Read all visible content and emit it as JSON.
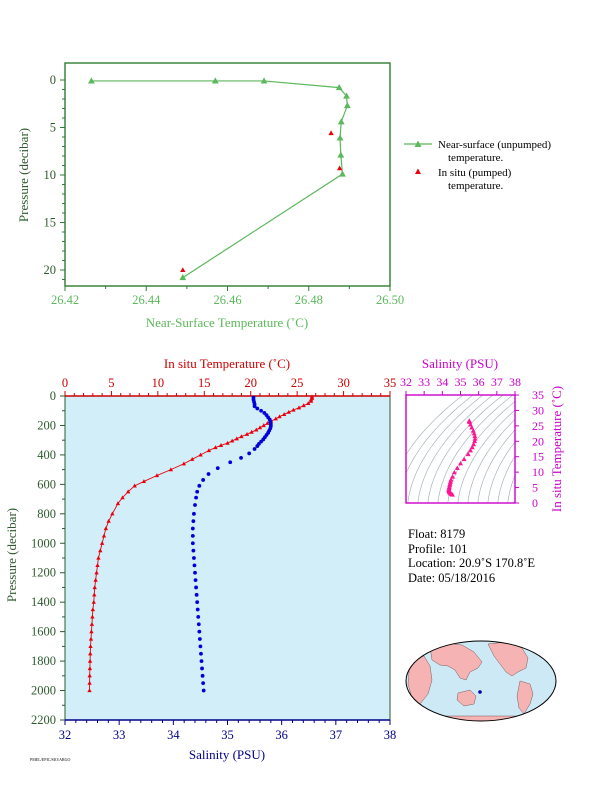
{
  "chart_data": [
    {
      "type": "line",
      "xlabel": "Near-Surface Temperature (˚C)",
      "ylabel": "Pressure (decibar)",
      "xlim": [
        26.42,
        26.5
      ],
      "ylim": [
        0,
        22
      ],
      "y_reversed": true,
      "x_ticks": [
        "26.42",
        "26.44",
        "26.46",
        "26.48",
        "26.50"
      ],
      "y_ticks": [
        "0",
        "5",
        "10",
        "15",
        "20"
      ],
      "colors": {
        "unpumped": "#5cb85c",
        "pumped": "#e8000b",
        "axis": "#5cb85c",
        "frame": "#2e7d32"
      },
      "series": [
        {
          "name": "Near-surface (unpumped) temperature.",
          "x": [
            26.4265,
            26.457,
            26.469,
            26.4875,
            26.4893,
            26.4895,
            26.488,
            26.4877,
            26.4879,
            26.4883,
            26.449
          ],
          "y": [
            0.1,
            0.1,
            0.1,
            0.8,
            1.7,
            2.7,
            4.4,
            6.1,
            7.9,
            9.9,
            20.8
          ]
        },
        {
          "name": "In situ (pumped) temperature.",
          "x": [
            26.4855,
            26.4876,
            26.449
          ],
          "y": [
            5.6,
            9.3,
            20.0
          ]
        }
      ],
      "legend": {
        "line1": "Near-surface (unpumped)",
        "line1b": "temperature.",
        "line2": "In situ (pumped)",
        "line2b": "temperature.",
        "position": "right"
      }
    },
    {
      "type": "scatter",
      "title_temp": "In situ Temperature (˚C)",
      "xlabel": "Salinity (PSU)",
      "ylabel": "Pressure (decibar)",
      "temp_ticks": [
        "0",
        "5",
        "10",
        "15",
        "20",
        "25",
        "30",
        "35"
      ],
      "sal_ticks": [
        "32",
        "33",
        "34",
        "35",
        "36",
        "37",
        "38"
      ],
      "y_ticks": [
        "0",
        "200",
        "400",
        "600",
        "800",
        "1000",
        "1200",
        "1400",
        "1600",
        "1800",
        "2000",
        "2200"
      ],
      "temp_lim": [
        0,
        35
      ],
      "sal_lim": [
        32,
        38
      ],
      "ylim": [
        0,
        2200
      ],
      "y_reversed": true,
      "colors": {
        "temperature": "#e8000b",
        "salinity": "#0000dd",
        "background": "#d2eef8",
        "sal_axis": "#00008b",
        "temp_axis": "#cc0000",
        "y_axis": "#2e5a2e"
      },
      "temperature": {
        "p": [
          5,
          15,
          25,
          35,
          50,
          65,
          80,
          95,
          110,
          125,
          140,
          155,
          170,
          185,
          200,
          215,
          230,
          245,
          260,
          275,
          290,
          305,
          320,
          335,
          350,
          370,
          400,
          430,
          460,
          500,
          540,
          580,
          610,
          650,
          690,
          730,
          800,
          850,
          900,
          950,
          1000,
          1050,
          1100,
          1150,
          1200,
          1250,
          1300,
          1350,
          1400,
          1450,
          1500,
          1550,
          1600,
          1650,
          1700,
          1750,
          1800,
          1850,
          1900,
          1950,
          2000
        ],
        "t": [
          26.6,
          26.6,
          26.5,
          26.5,
          26.2,
          25.7,
          25.2,
          24.6,
          24.1,
          23.6,
          23.1,
          22.7,
          22.2,
          21.8,
          21.4,
          21.0,
          20.6,
          20.1,
          19.6,
          19.0,
          18.5,
          18.0,
          17.5,
          16.8,
          16.2,
          15.5,
          14.6,
          13.7,
          12.8,
          11.4,
          9.9,
          8.5,
          7.5,
          6.8,
          6.2,
          5.7,
          5.1,
          4.7,
          4.4,
          4.2,
          4.0,
          3.8,
          3.6,
          3.5,
          3.4,
          3.3,
          3.2,
          3.15,
          3.1,
          3.0,
          2.95,
          2.9,
          2.85,
          2.8,
          2.75,
          2.72,
          2.7,
          2.68,
          2.66,
          2.65,
          2.64
        ]
      },
      "salinity": {
        "p": [
          10,
          25,
          40,
          55,
          70,
          85,
          100,
          115,
          130,
          145,
          160,
          175,
          190,
          205,
          220,
          235,
          250,
          265,
          280,
          295,
          310,
          325,
          340,
          360,
          390,
          420,
          450,
          490,
          530,
          570,
          610,
          650,
          690,
          740,
          800,
          850,
          900,
          950,
          1000,
          1050,
          1100,
          1150,
          1200,
          1250,
          1300,
          1350,
          1400,
          1450,
          1500,
          1550,
          1600,
          1650,
          1700,
          1750,
          1800,
          1850,
          1900,
          1950,
          2000
        ],
        "s": [
          35.48,
          35.48,
          35.49,
          35.5,
          35.5,
          35.55,
          35.62,
          35.68,
          35.72,
          35.75,
          35.78,
          35.79,
          35.8,
          35.8,
          35.79,
          35.77,
          35.75,
          35.72,
          35.69,
          35.66,
          35.62,
          35.58,
          35.55,
          35.5,
          35.4,
          35.25,
          35.05,
          34.82,
          34.65,
          34.55,
          34.48,
          34.44,
          34.42,
          34.4,
          34.38,
          34.37,
          34.36,
          34.36,
          34.36,
          34.37,
          34.38,
          34.39,
          34.4,
          34.41,
          34.42,
          34.43,
          34.44,
          34.45,
          34.46,
          34.47,
          34.48,
          34.49,
          34.5,
          34.51,
          34.52,
          34.53,
          34.54,
          34.55,
          34.56
        ]
      }
    },
    {
      "type": "scatter",
      "title": "Salinity (PSU)",
      "ylabel": "In situ Temperature (˚C)",
      "x_ticks": [
        "32",
        "33",
        "34",
        "35",
        "36",
        "37",
        "38"
      ],
      "y_ticks": [
        "0",
        "5",
        "10",
        "15",
        "20",
        "25",
        "30",
        "35"
      ],
      "xlim": [
        32,
        38
      ],
      "ylim": [
        0,
        35
      ],
      "colors": {
        "points": "#ff1493",
        "axis": "#cc00cc",
        "contours": "#9aa8b0"
      },
      "points": {
        "s": [
          35.48,
          35.49,
          35.5,
          35.55,
          35.62,
          35.7,
          35.75,
          35.79,
          35.8,
          35.78,
          35.72,
          35.65,
          35.55,
          35.42,
          35.2,
          35.0,
          34.82,
          34.66,
          34.56,
          34.48,
          34.44,
          34.42,
          34.4,
          34.38,
          34.37,
          34.36,
          34.36,
          34.37,
          34.39,
          34.42,
          34.45,
          34.48,
          34.52,
          34.56
        ],
        "t": [
          26.6,
          26.5,
          26.2,
          25.4,
          24.4,
          23.4,
          22.5,
          21.6,
          20.8,
          20.0,
          19.0,
          18.0,
          17.0,
          15.8,
          14.2,
          12.8,
          11.3,
          9.9,
          8.5,
          7.5,
          6.8,
          6.2,
          5.7,
          5.1,
          4.7,
          4.4,
          4.1,
          3.8,
          3.5,
          3.3,
          3.1,
          2.95,
          2.8,
          2.65
        ]
      }
    }
  ],
  "info": {
    "float": "Float:  8179",
    "profile": "Profile:  101",
    "location": "Location:  20.9˚S  170.8˚E",
    "date": "Date:  05/18/2016"
  },
  "map": {
    "ocean_color": "#cde9f6",
    "land_color": "#f5b3b3",
    "marker_color": "#0000aa",
    "marker_lon": 170.8,
    "marker_lat": -20.9
  },
  "footer": "PMEL/EPIC/SIO/ARGO"
}
